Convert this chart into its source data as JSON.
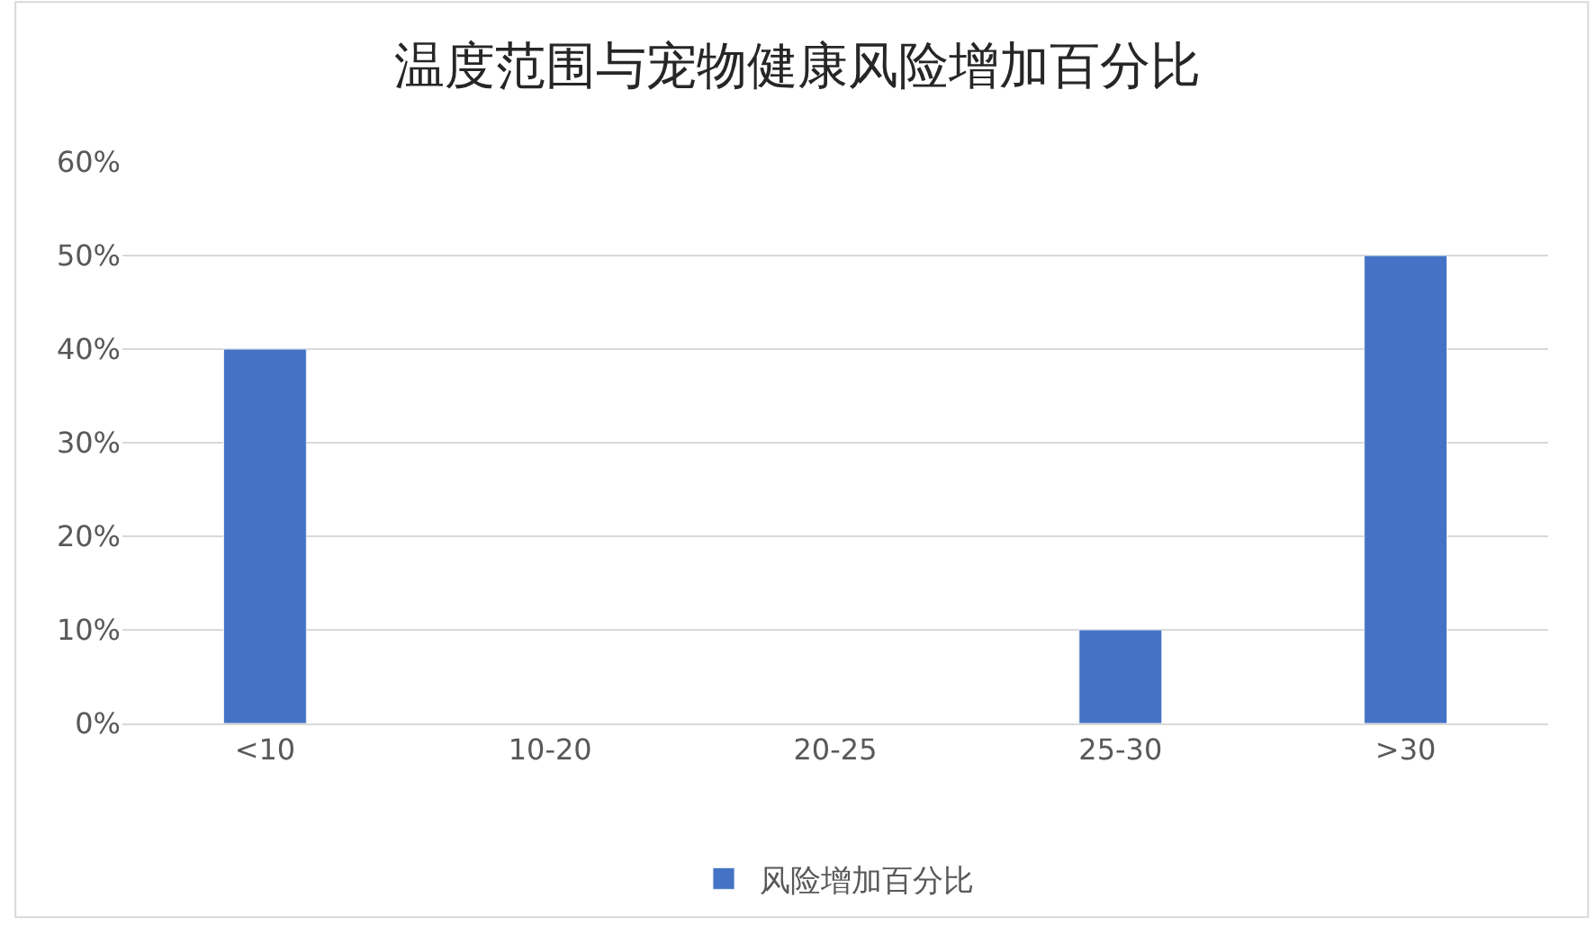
{
  "chart_data": {
    "type": "bar",
    "title": "温度范围与宠物健康风险增加百分比",
    "categories": [
      "<10",
      "10-20",
      "20-25",
      "25-30",
      ">30"
    ],
    "series": [
      {
        "name": "风险增加百分比",
        "color": "#4472c4",
        "values": [
          40,
          null,
          null,
          10,
          50
        ]
      }
    ],
    "ylim": [
      0,
      60
    ],
    "yticks": [
      {
        "value": 0,
        "label": "0%"
      },
      {
        "value": 10,
        "label": "10%"
      },
      {
        "value": 20,
        "label": "20%"
      },
      {
        "value": 30,
        "label": "30%"
      },
      {
        "value": 40,
        "label": "40%"
      },
      {
        "value": 50,
        "label": "50%"
      },
      {
        "value": 60,
        "label": "60%"
      }
    ],
    "grid": "y",
    "legend": "bottom"
  }
}
